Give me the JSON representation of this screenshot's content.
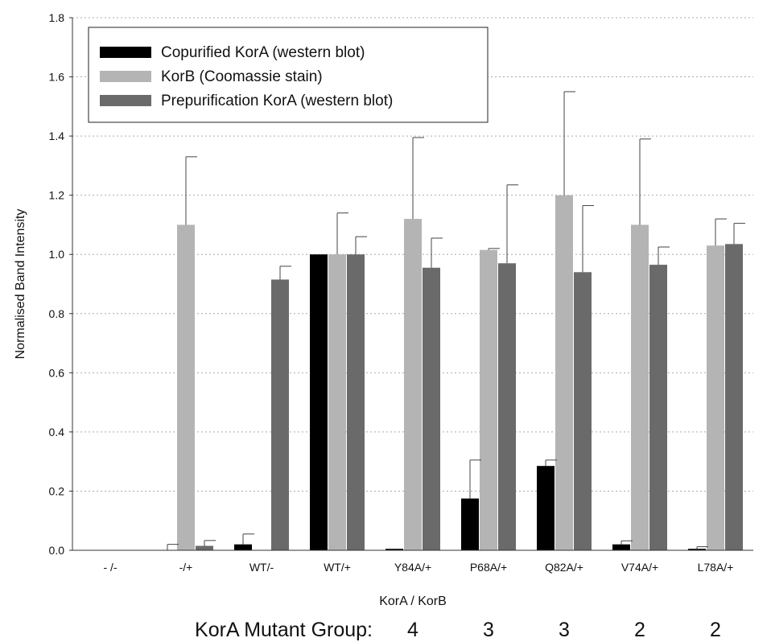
{
  "chart_data": {
    "type": "bar",
    "title": "",
    "xlabel": "KorA / KorB",
    "ylabel": "Normalised Band Intensity",
    "ylim": [
      0,
      1.8
    ],
    "yticks": [
      0.0,
      0.2,
      0.4,
      0.6,
      0.8,
      1.0,
      1.2,
      1.4,
      1.6,
      1.8
    ],
    "ytick_labels": [
      "0.0",
      "0.2",
      "0.4",
      "0.6",
      "0.8",
      "1.0",
      "1.2",
      "1.4",
      "1.6",
      "1.8"
    ],
    "grid": "horizontal dotted",
    "legend_position": "top-left",
    "categories": [
      "- /-",
      "-/+",
      "WT/-",
      "WT/+",
      "Y84A/+",
      "P68A/+",
      "Q82A/+",
      "V74A/+",
      "L78A/+"
    ],
    "series": [
      {
        "name": "Copurified KorA (western blot)",
        "color": "#000000",
        "values": [
          0,
          0,
          0.02,
          1.0,
          0.005,
          0.175,
          0.285,
          0.02,
          0.005
        ],
        "error": [
          0,
          0.02,
          0.035,
          0,
          0,
          0.13,
          0.02,
          0.012,
          0.007
        ]
      },
      {
        "name": "KorB (Coomassie stain)",
        "color": "#b4b4b4",
        "values": [
          0,
          1.1,
          0,
          1.0,
          1.12,
          1.015,
          1.2,
          1.1,
          1.03
        ],
        "error": [
          0,
          0.23,
          0,
          0.14,
          0.275,
          0.005,
          0.35,
          0.29,
          0.09
        ]
      },
      {
        "name": "Prepurification KorA (western blot)",
        "color": "#6a6a6a",
        "values": [
          0,
          0.015,
          0.915,
          1.0,
          0.955,
          0.97,
          0.94,
          0.965,
          1.035
        ],
        "error": [
          0,
          0.018,
          0.045,
          0.06,
          0.1,
          0.265,
          0.225,
          0.06,
          0.07
        ]
      }
    ],
    "group_row": {
      "label": "KorA Mutant Group:",
      "entries": [
        {
          "category": "Y84A/+",
          "value": "4"
        },
        {
          "category": "P68A/+",
          "value": "3"
        },
        {
          "category": "Q82A/+",
          "value": "3"
        },
        {
          "category": "V74A/+",
          "value": "2"
        },
        {
          "category": "L78A/+",
          "value": "2"
        }
      ]
    }
  }
}
